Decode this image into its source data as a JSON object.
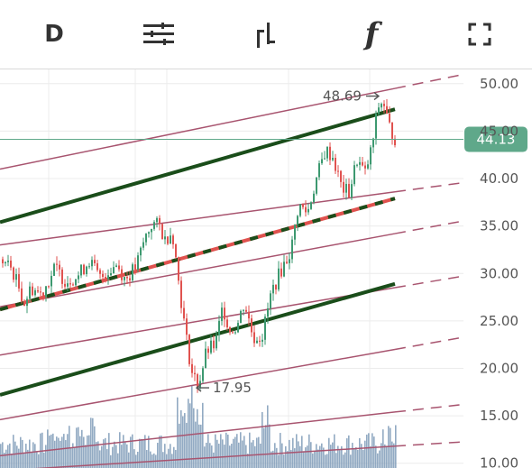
{
  "toolbar": {
    "interval_label": "D",
    "items": [
      {
        "name": "interval-button",
        "icon": "text-D"
      },
      {
        "name": "indicators-button",
        "icon": "sliders-icon"
      },
      {
        "name": "chart-type-button",
        "icon": "bar-chart-icon"
      },
      {
        "name": "formula-button",
        "icon": "function-icon"
      },
      {
        "name": "fullscreen-button",
        "icon": "fullscreen-icon"
      }
    ],
    "formula_label": "f"
  },
  "chart_data": {
    "type": "candlestick",
    "y_axis": {
      "ticks": [
        "50.00",
        "45.00",
        "40.00",
        "35.00",
        "30.00",
        "25.00",
        "20.00",
        "15.00",
        "10.00"
      ],
      "tick_values": [
        50,
        45,
        40,
        35,
        30,
        25,
        20,
        15,
        10
      ],
      "range": [
        9.5,
        51.5
      ]
    },
    "current_price": {
      "label": "44.13",
      "value": 44.13,
      "color": "#5fa88a"
    },
    "annotations": [
      {
        "label": "48.69",
        "value": 48.69,
        "kind": "high"
      },
      {
        "label": "17.95",
        "value": 17.95,
        "kind": "low"
      }
    ],
    "colors": {
      "up": "#3d9970",
      "down": "#e0524f",
      "channel_line": "#a8546f",
      "trend_line": "#1a4d1a",
      "volume": "#7f9bb8"
    },
    "grid": true
  }
}
